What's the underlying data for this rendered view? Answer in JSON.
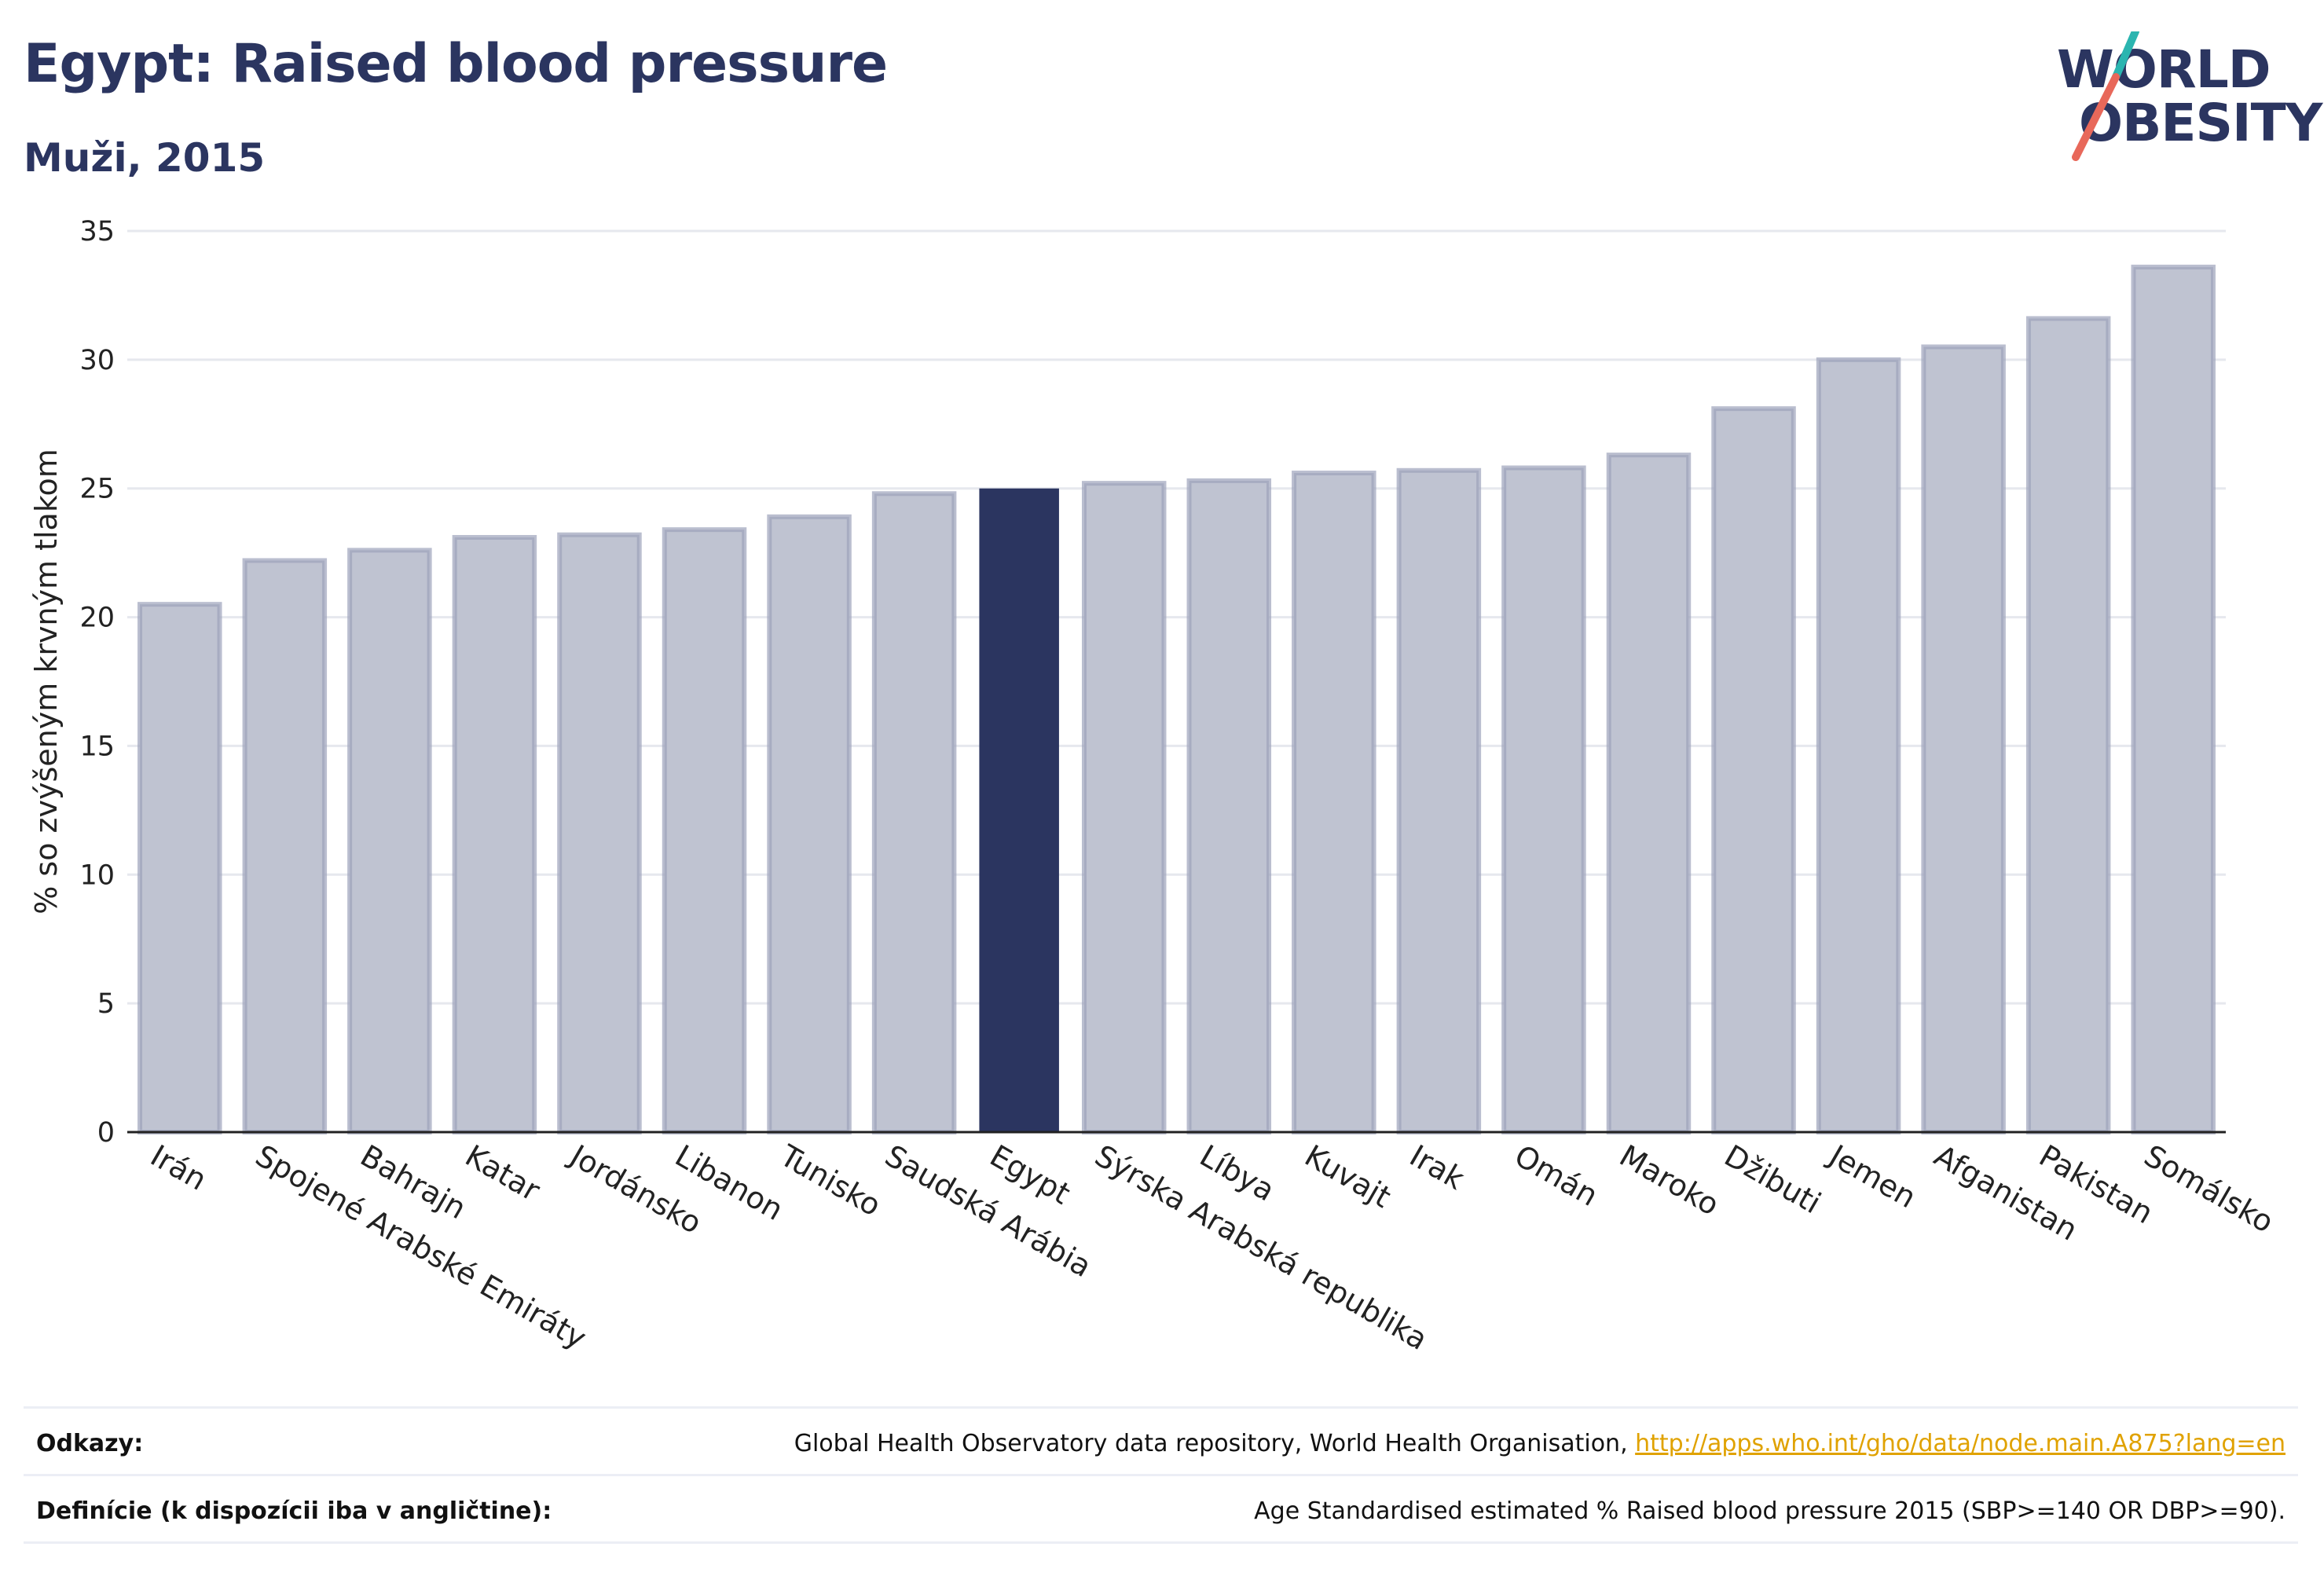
{
  "header": {
    "title": "Egypt: Raised blood pressure",
    "subtitle": "Muži, 2015"
  },
  "logo": {
    "line1": "WORLD",
    "line2": "OBESITY",
    "accent_teal": "#2bb5b0",
    "accent_red": "#e8685a"
  },
  "colors": {
    "bar": "#bfc3d1",
    "bar_border": "#9ca2bb",
    "highlight": "#2b3560",
    "text_dark": "#2b3560"
  },
  "chart_data": {
    "type": "bar",
    "title": "Egypt: Raised blood pressure",
    "subtitle": "Muži, 2015",
    "xlabel": "",
    "ylabel": "% so zvýšeným krvným tlakom",
    "ylim": [
      0,
      35
    ],
    "yticks": [
      0,
      5,
      10,
      15,
      20,
      25,
      30,
      35
    ],
    "grid": true,
    "highlight": "Egypt",
    "categories": [
      "Irán",
      "Spojené Arabské Emiráty",
      "Bahrajn",
      "Katar",
      "Jordánsko",
      "Libanon",
      "Tunisko",
      "Saudská Arábia",
      "Egypt",
      "Sýrska Arabská republika",
      "Líbya",
      "Kuvajt",
      "Irak",
      "Omán",
      "Maroko",
      "Džibuti",
      "Jemen",
      "Afganistan",
      "Pakistan",
      "Somálsko"
    ],
    "values": [
      20.5,
      22.2,
      22.6,
      23.1,
      23.2,
      23.4,
      23.9,
      24.8,
      25.0,
      25.2,
      25.3,
      25.6,
      25.7,
      25.8,
      26.3,
      28.1,
      30.0,
      30.5,
      31.6,
      33.6
    ]
  },
  "footer": {
    "sources_label": "Odkazy:",
    "sources_text": "Global Health Observatory data repository, World Health Organisation, ",
    "sources_link": "http://apps.who.int/gho/data/node.main.A875?lang=en",
    "definitions_label": "Definície (k dispozícii iba v angličtine):",
    "definitions_text": "Age Standardised estimated % Raised blood pressure 2015 (SBP>=140 OR DBP>=90)."
  }
}
